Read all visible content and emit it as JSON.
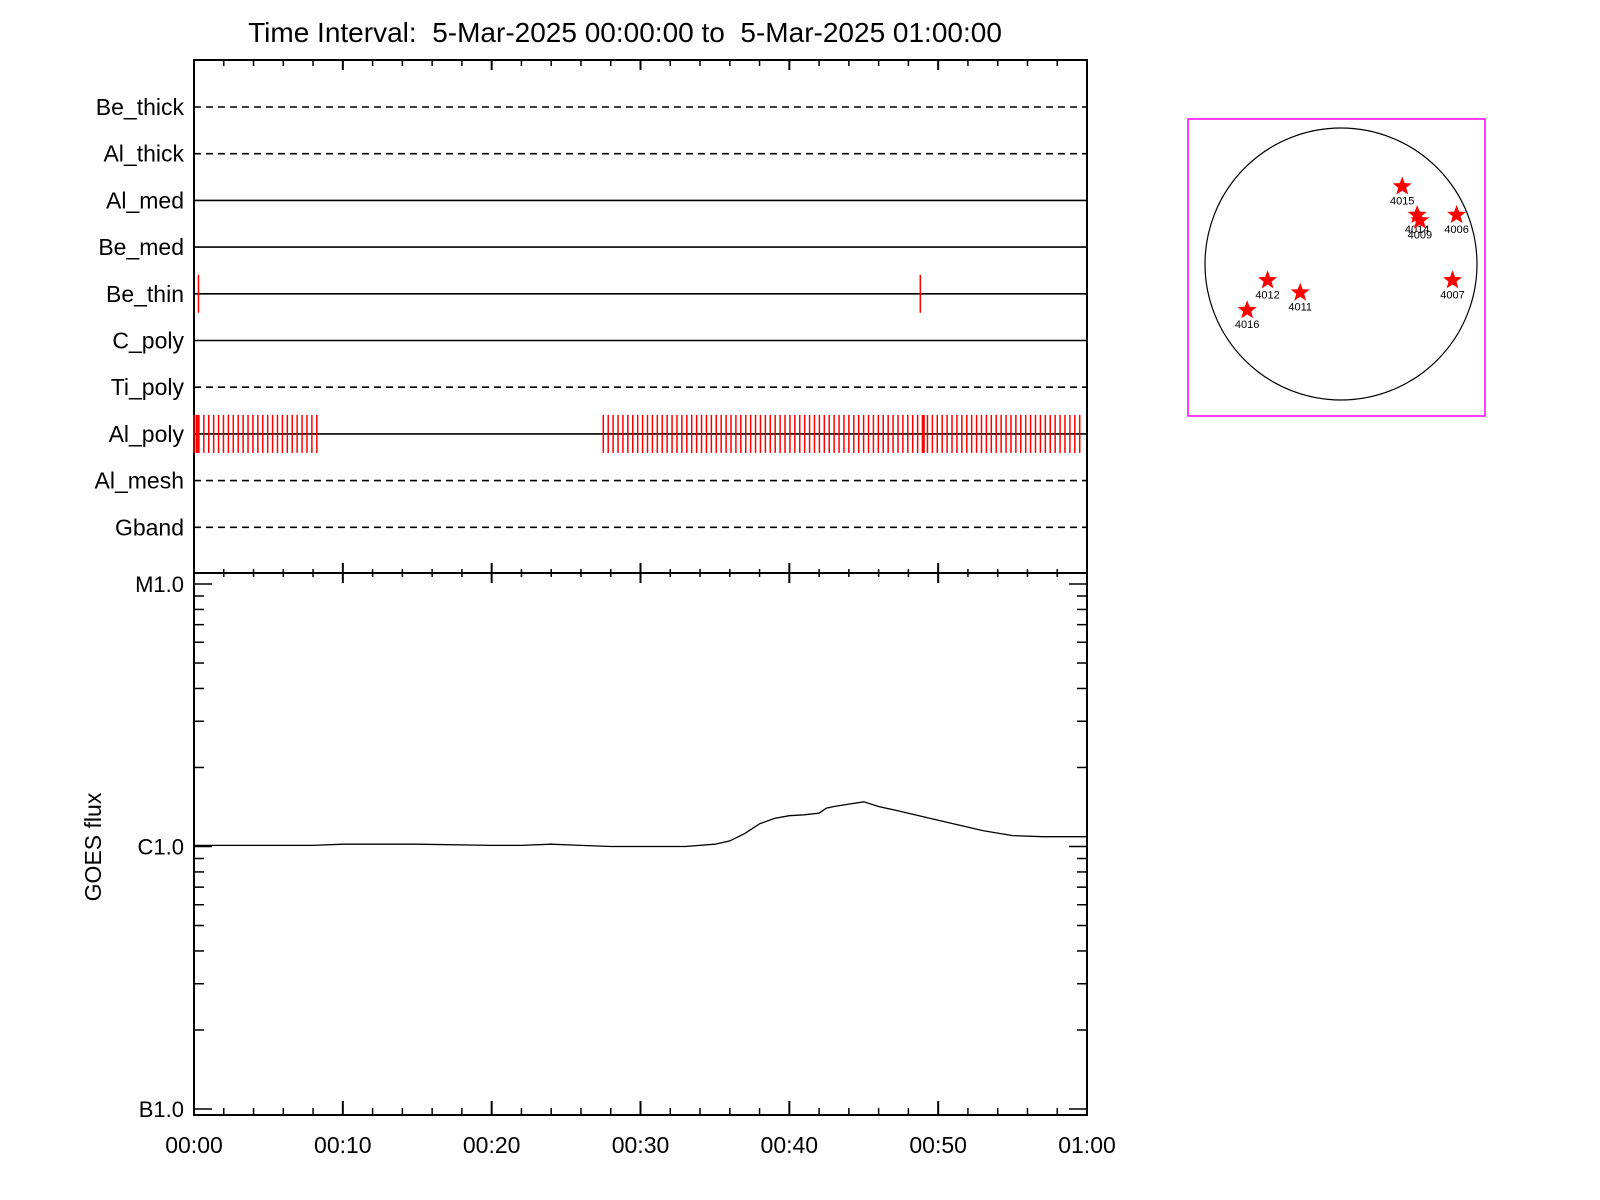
{
  "chart_data": [
    {
      "type": "timeline",
      "title": "Time Interval:  5-Mar-2025 00:00:00 to  5-Mar-2025 01:00:00",
      "xlim": [
        "00:00",
        "01:00"
      ],
      "rows": [
        {
          "label": "Be_thick",
          "style": "dashed",
          "marks": []
        },
        {
          "label": "Al_thick",
          "style": "dashed",
          "marks": []
        },
        {
          "label": "Al_med",
          "style": "solid",
          "marks": []
        },
        {
          "label": "Be_med",
          "style": "solid",
          "marks": []
        },
        {
          "label": "Be_thin",
          "style": "solid",
          "marks": [
            0.3,
            48.8
          ]
        },
        {
          "label": "C_poly",
          "style": "solid",
          "marks": []
        },
        {
          "label": "Ti_poly",
          "style": "dashed",
          "marks": []
        },
        {
          "label": "Al_poly",
          "style": "solid",
          "marks": "0.0-8.5 every 0.33 min; 27.5-59.6 every 0.33 min"
        },
        {
          "label": "Al_mesh",
          "style": "dashed",
          "marks": []
        },
        {
          "label": "Gband",
          "style": "dashed",
          "marks": []
        }
      ],
      "mark_color": "#ff0000"
    },
    {
      "type": "line",
      "ylabel": "GOES flux",
      "yscale": "log",
      "ylim": [
        1e-07,
        1e-05
      ],
      "yticks": [
        {
          "value": 1e-05,
          "label": "M1.0"
        },
        {
          "value": 1e-06,
          "label": "C1.0"
        },
        {
          "value": 1e-07,
          "label": "B1.0"
        }
      ],
      "xticks": [
        "00:00",
        "00:10",
        "00:20",
        "00:30",
        "00:40",
        "00:50",
        "01:00"
      ],
      "series": [
        {
          "color": "#000000",
          "x": [
            0,
            5,
            8,
            10,
            15,
            20,
            22,
            24,
            26,
            28,
            30,
            32,
            33,
            35,
            36,
            37,
            38,
            39,
            40,
            41,
            42,
            42.5,
            43,
            44,
            45,
            46,
            47,
            50,
            53,
            55,
            57,
            60
          ],
          "y": [
            1.01e-06,
            1.01e-06,
            1.01e-06,
            1.02e-06,
            1.02e-06,
            1.01e-06,
            1.01e-06,
            1.02e-06,
            1.01e-06,
            1e-06,
            1e-06,
            1e-06,
            1e-06,
            1.02e-06,
            1.05e-06,
            1.12e-06,
            1.22e-06,
            1.28e-06,
            1.31e-06,
            1.32e-06,
            1.34e-06,
            1.4e-06,
            1.42e-06,
            1.45e-06,
            1.48e-06,
            1.42e-06,
            1.38e-06,
            1.26e-06,
            1.15e-06,
            1.1e-06,
            1.09e-06,
            1.09e-06
          ]
        }
      ]
    },
    {
      "type": "scatter",
      "subtype": "solar-disk-map",
      "frame_color": "#ff00ff",
      "marker": "star",
      "marker_color": "#ff0000",
      "points": [
        {
          "label": "4015",
          "x": 0.45,
          "y": 0.57
        },
        {
          "label": "4014",
          "x": 0.56,
          "y": 0.36
        },
        {
          "label": "4009",
          "x": 0.58,
          "y": 0.32
        },
        {
          "label": "4006",
          "x": 0.85,
          "y": 0.36
        },
        {
          "label": "4012",
          "x": -0.54,
          "y": -0.12
        },
        {
          "label": "4011",
          "x": -0.3,
          "y": -0.21
        },
        {
          "label": "4016",
          "x": -0.69,
          "y": -0.34
        },
        {
          "label": "4007",
          "x": 0.82,
          "y": -0.12
        }
      ]
    }
  ]
}
